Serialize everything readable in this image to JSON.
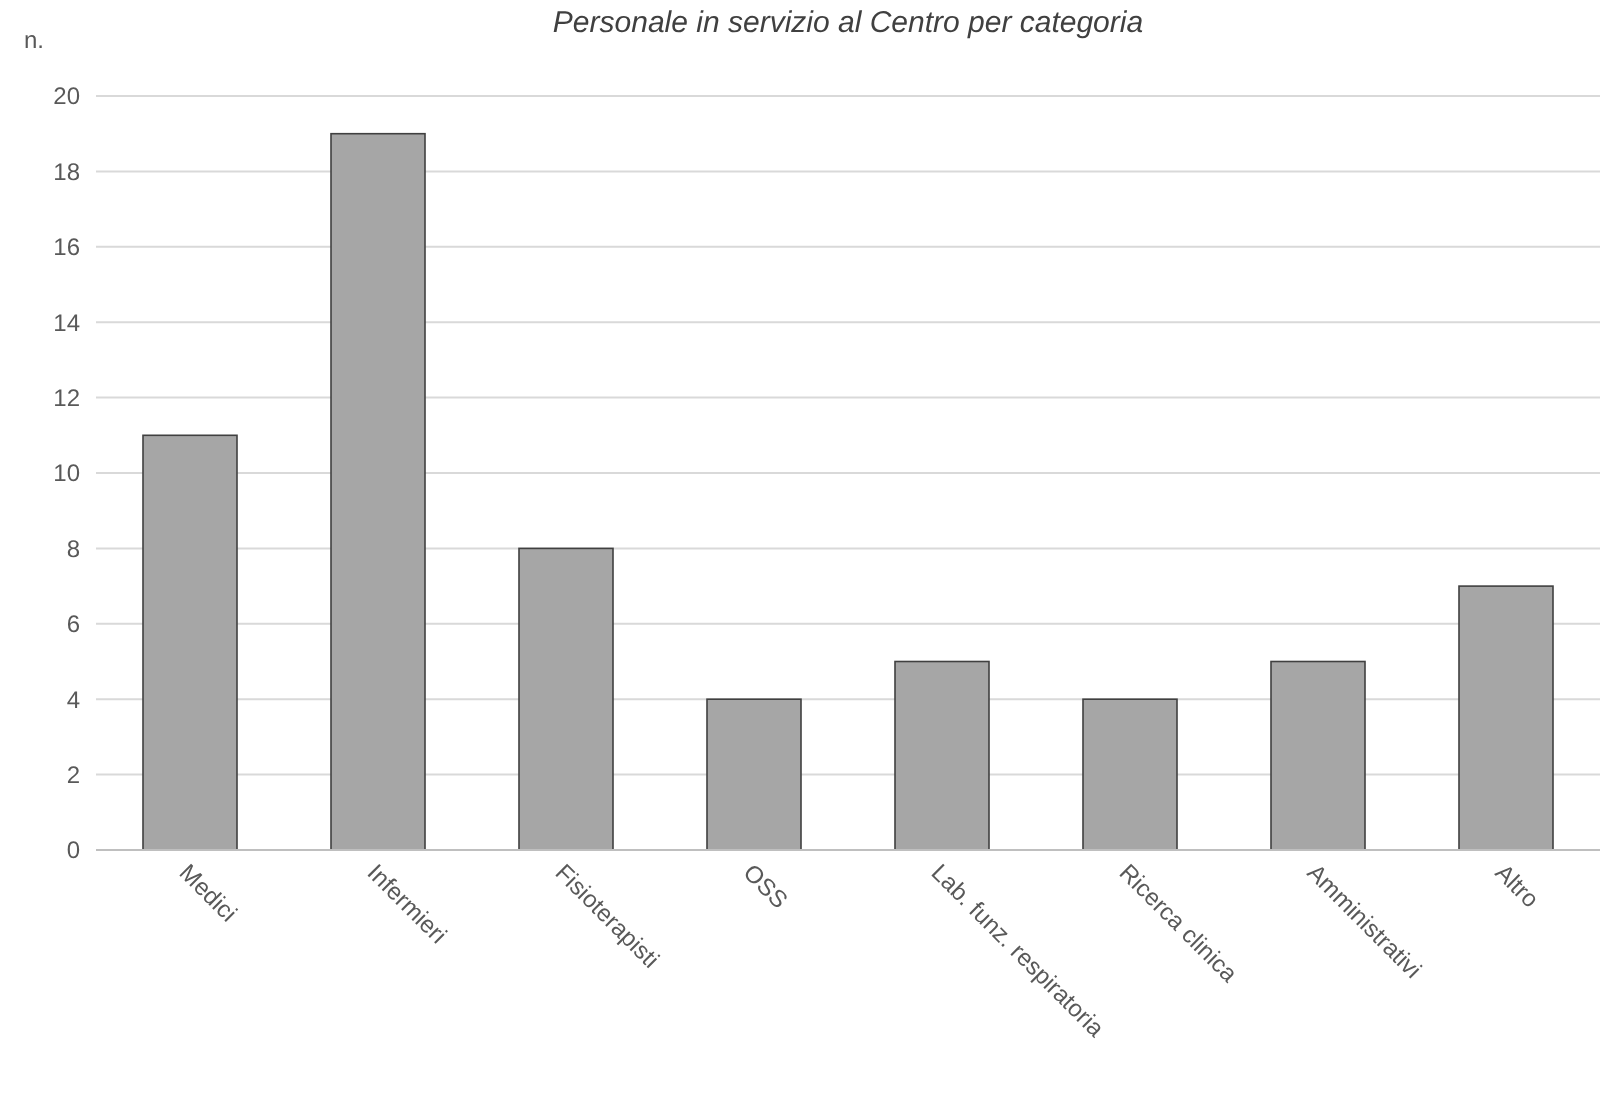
{
  "chart_data": {
    "type": "bar",
    "title": "Personale in servizio al Centro per categoria",
    "ylabel": "n.",
    "categories": [
      "Medici",
      "Infermieri",
      "Fisioterapisti",
      "OSS",
      "Lab. funz. respiratoria",
      "Ricerca clinica",
      "Amministrativi",
      "Altro"
    ],
    "values": [
      11,
      19,
      8,
      4,
      5,
      4,
      5,
      7
    ],
    "color": "#a6a6a6",
    "ylim": [
      0,
      20
    ],
    "yticks": [
      0,
      2,
      4,
      6,
      8,
      10,
      12,
      14,
      16,
      18,
      20
    ],
    "grid": "y"
  }
}
